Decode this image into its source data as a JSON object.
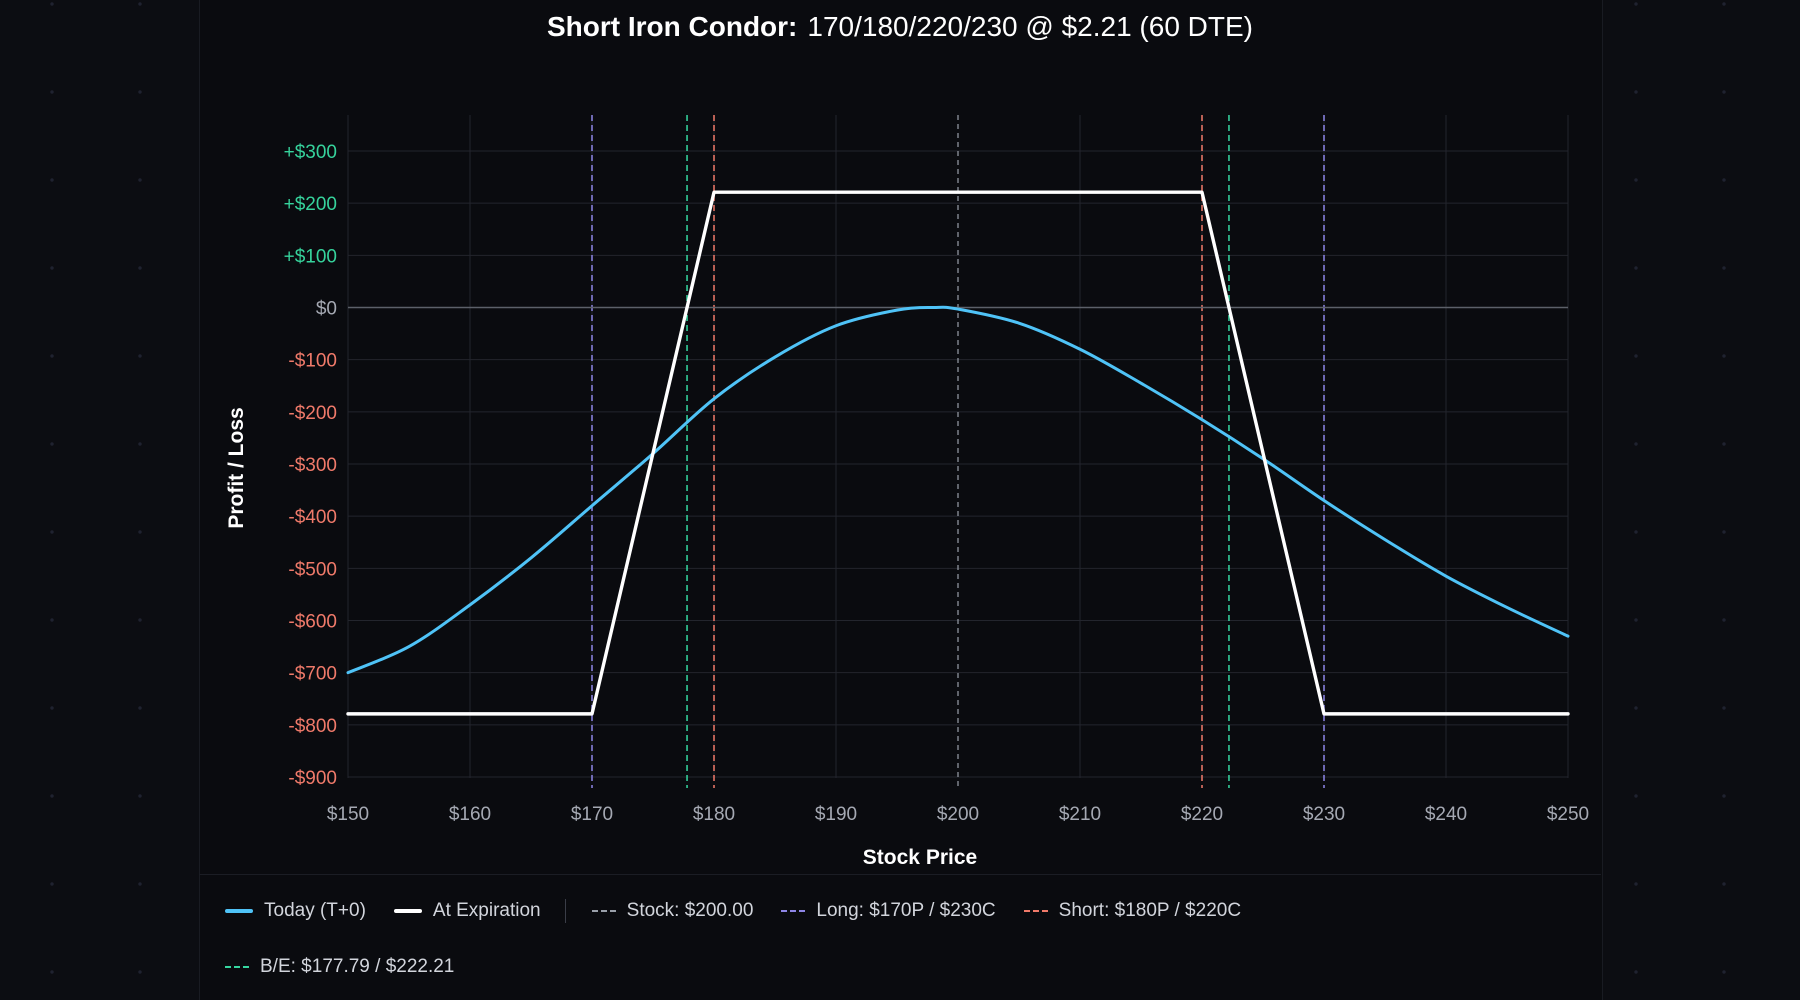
{
  "title": {
    "strong": "Short Iron Condor:",
    "detail": "170/180/220/230 @ $2.21 (60 DTE)"
  },
  "colors": {
    "today": "#4fc3f7",
    "expiration": "#ffffff",
    "stock": "#9aa0aa",
    "long": "#8e86e6",
    "short": "#f07a6a",
    "breakeven": "#36d6a0",
    "positive_tick": "#36d39c",
    "negative_tick": "#f07a6a",
    "zero_tick": "#a5a9b3",
    "grid": "#23252d",
    "axis_text": "#a5a9b3"
  },
  "chart_data": {
    "type": "line",
    "xlabel": "Stock Price",
    "ylabel": "Profit / Loss",
    "xlim": [
      150,
      250
    ],
    "ylim": [
      -900,
      300
    ],
    "grid": true,
    "x_ticks": [
      150,
      160,
      170,
      180,
      190,
      200,
      210,
      220,
      230,
      240,
      250
    ],
    "x_tick_labels": [
      "$150",
      "$160",
      "$170",
      "$180",
      "$190",
      "$200",
      "$210",
      "$220",
      "$230",
      "$240",
      "$250"
    ],
    "y_ticks": [
      300,
      200,
      100,
      0,
      -100,
      -200,
      -300,
      -400,
      -500,
      -600,
      -700,
      -800,
      -900
    ],
    "y_tick_labels": [
      "+$300",
      "+$200",
      "+$100",
      "$0",
      "-$100",
      "-$200",
      "-$300",
      "-$400",
      "-$500",
      "-$600",
      "-$700",
      "-$800",
      "-$900"
    ],
    "series": [
      {
        "name": "Today (T+0)",
        "x": [
          150,
          155,
          160,
          165,
          170,
          175,
          180,
          185,
          190,
          195,
          198,
          200,
          205,
          210,
          215,
          220,
          225,
          230,
          235,
          240,
          245,
          250
        ],
        "y": [
          -700,
          -650,
          -570,
          -480,
          -380,
          -280,
          -175,
          -95,
          -35,
          -5,
          0,
          -3,
          -30,
          -80,
          -145,
          -215,
          -290,
          -370,
          -445,
          -515,
          -575,
          -630
        ]
      },
      {
        "name": "At Expiration",
        "x": [
          150,
          170,
          180,
          220,
          230,
          250
        ],
        "y": [
          -779,
          -779,
          221,
          221,
          -779,
          -779
        ]
      }
    ],
    "reference_lines": [
      {
        "kind": "stock",
        "x": 200
      },
      {
        "kind": "long",
        "x": 170
      },
      {
        "kind": "long",
        "x": 230
      },
      {
        "kind": "short",
        "x": 180
      },
      {
        "kind": "short",
        "x": 220
      },
      {
        "kind": "breakeven",
        "x": 177.79
      },
      {
        "kind": "breakeven",
        "x": 222.21
      }
    ]
  },
  "legend": {
    "today": "Today (T+0)",
    "expiration": "At Expiration",
    "stock": "Stock: $200.00",
    "long": "Long: $170P / $230C",
    "short": "Short: $180P / $220C",
    "breakeven": "B/E: $177.79 / $222.21"
  }
}
